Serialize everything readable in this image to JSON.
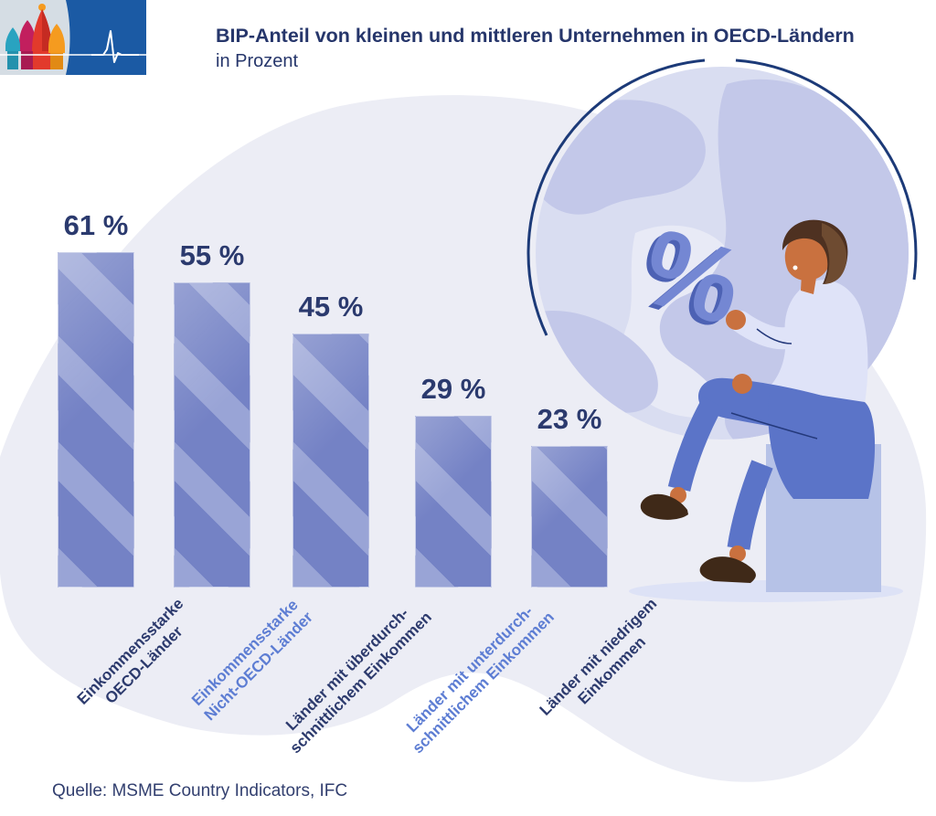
{
  "header": {
    "title": "BIP-Anteil von kleinen und mittleren Unternehmen in OECD-Ländern",
    "subtitle": "in Prozent",
    "logo_icon": "st-basils-cathedral-pulse-logo"
  },
  "chart_data": {
    "type": "bar",
    "title": "BIP-Anteil von kleinen und mittleren Unternehmen in OECD-Ländern",
    "unit_label": "in Prozent",
    "categories": [
      {
        "label_lines": [
          "Einkommensstarke",
          "OECD-Länder"
        ],
        "value": 61,
        "value_label": "61 %",
        "label_color": "#2c3a6d"
      },
      {
        "label_lines": [
          "Einkommensstarke",
          "Nicht-OECD-Länder"
        ],
        "value": 55,
        "value_label": "55 %",
        "label_color": "#5d7dd3"
      },
      {
        "label_lines": [
          "Länder mit überdurch-",
          "schnittlichem Einkommen"
        ],
        "value": 45,
        "value_label": "45 %",
        "label_color": "#2c3a6d"
      },
      {
        "label_lines": [
          "Länder mit unterdurch-",
          "schnittlichem Einkommen"
        ],
        "value": 29,
        "value_label": "29 %",
        "label_color": "#5d7dd3"
      },
      {
        "label_lines": [
          "Länder mit niedrigem",
          "Einkommen"
        ],
        "value": 23,
        "value_label": "23 %",
        "label_color": "#2c3a6d"
      }
    ],
    "ylim": [
      0,
      65
    ],
    "grid": false,
    "legend": null,
    "bar_colors": {
      "stripe_light": "#99a4d6",
      "stripe_dark": "#7482c5"
    },
    "value_label_color": "#2b3a6e"
  },
  "illustration": {
    "percent_symbol": "%"
  },
  "footer": {
    "source": "Quelle: MSME Country Indicators, IFC"
  },
  "colors": {
    "background": "#ffffff",
    "blob": "#ecedf5",
    "globe_fill": "#d9ddf1",
    "continent": "#c3c8e9",
    "globe_outline": "#1c3a78",
    "title_text": "#26366b",
    "dark_label": "#2c3a6d",
    "light_label": "#5d7dd3"
  }
}
